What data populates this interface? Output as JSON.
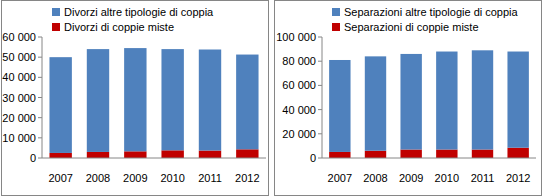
{
  "chart_data": [
    {
      "type": "bar",
      "stacked": true,
      "legend": "top",
      "categories": [
        "2007",
        "2008",
        "2009",
        "2010",
        "2011",
        "2012"
      ],
      "series": [
        {
          "name": "Divorzi di coppie miste",
          "color": "#c00000",
          "values": [
            2500,
            3000,
            3300,
            3800,
            3700,
            4300
          ]
        },
        {
          "name": "Divorzi altre tipologie di coppia",
          "color": "#4f81bd",
          "values": [
            47500,
            51000,
            51200,
            50200,
            50100,
            47000
          ]
        }
      ],
      "ylim": [
        0,
        60000
      ],
      "yticks": [
        0,
        {
          "value": 10000,
          "label": "10 000"
        },
        {
          "value": 20000,
          "label": "20 000"
        },
        {
          "value": 30000,
          "label": "30 000"
        },
        {
          "value": 40000,
          "label": "40 000"
        },
        {
          "value": 50000,
          "label": "50 000"
        },
        {
          "value": 60000,
          "label": "60 000"
        }
      ]
    },
    {
      "type": "bar",
      "stacked": true,
      "legend": "top",
      "categories": [
        "2007",
        "2008",
        "2009",
        "2010",
        "2011",
        "2012"
      ],
      "series": [
        {
          "name": "Separazioni di coppie miste",
          "color": "#c00000",
          "values": [
            5000,
            6000,
            7000,
            7000,
            7000,
            8500
          ]
        },
        {
          "name": "Separazioni altre tipologie di coppia",
          "color": "#4f81bd",
          "values": [
            76000,
            78000,
            79000,
            81000,
            82000,
            79500
          ]
        }
      ],
      "ylim": [
        0,
        100000
      ],
      "yticks": [
        0,
        {
          "value": 20000,
          "label": "20 000"
        },
        {
          "value": 40000,
          "label": "40 000"
        },
        {
          "value": 60000,
          "label": "60 000"
        },
        {
          "value": 80000,
          "label": "80 000"
        },
        {
          "value": 100000,
          "label": "100 000"
        }
      ]
    }
  ]
}
